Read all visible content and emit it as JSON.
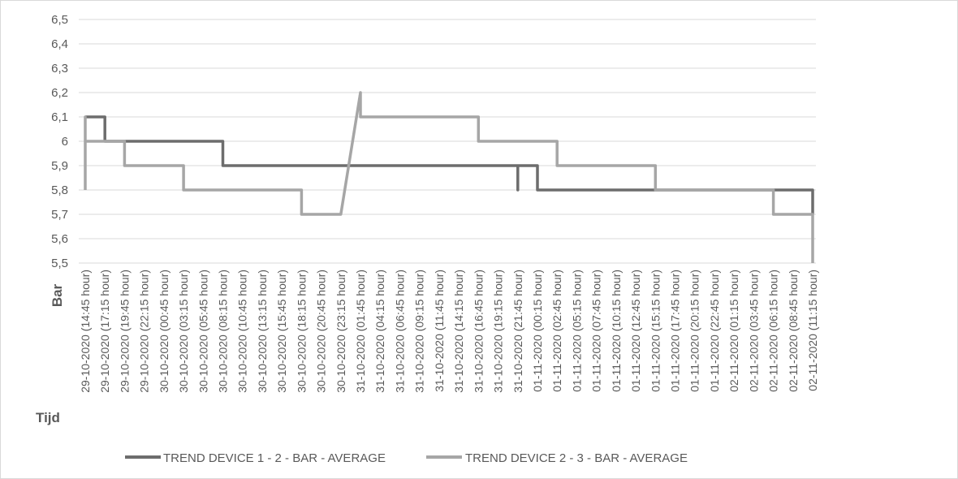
{
  "chart_data": {
    "type": "line",
    "ylabel": "Bar",
    "xlabel": "Tijd",
    "ylim": [
      5.5,
      6.5
    ],
    "yticks": [
      "6,5",
      "6,4",
      "6,3",
      "6,2",
      "6,1",
      "6",
      "5,9",
      "5,8",
      "5,7",
      "5,6",
      "5,5"
    ],
    "grid": true,
    "legend_position": "bottom",
    "x_tick_labels": [
      "29-10-2020 (14:45 hour)",
      "29-10-2020 (17:15 hour)",
      "29-10-2020 (19:45 hour)",
      "29-10-2020 (22:15 hour)",
      "30-10-2020 (00:45 hour)",
      "30-10-2020 (03:15 hour)",
      "30-10-2020 (05:45 hour)",
      "30-10-2020 (08:15 hour)",
      "30-10-2020 (10:45 hour)",
      "30-10-2020 (13:15 hour)",
      "30-10-2020 (15:45 hour)",
      "30-10-2020 (18:15 hour)",
      "30-10-2020 (20:45 hour)",
      "30-10-2020 (23:15 hour)",
      "31-10-2020 (01:45 hour)",
      "31-10-2020 (04:15 hour)",
      "31-10-2020 (06:45 hour)",
      "31-10-2020 (09:15 hour)",
      "31-10-2020 (11:45 hour)",
      "31-10-2020 (14:15 hour)",
      "31-10-2020 (16:45 hour)",
      "31-10-2020 (19:15 hour)",
      "31-10-2020 (21:45 hour)",
      "01-11-2020 (00:15 hour)",
      "01-11-2020 (02:45 hour)",
      "01-11-2020 (05:15 hour)",
      "01-11-2020 (07:45 hour)",
      "01-11-2020 (10:15 hour)",
      "01-11-2020 (12:45 hour)",
      "01-11-2020 (15:15 hour)",
      "01-11-2020 (17:45 hour)",
      "01-11-2020 (20:15 hour)",
      "01-11-2020 (22:45 hour)",
      "02-11-2020 (01:15 hour)",
      "02-11-2020 (03:45 hour)",
      "02-11-2020 (06:15 hour)",
      "02-11-2020 (08:45 hour)",
      "02-11-2020 (11:15 hour)"
    ],
    "series": [
      {
        "name": "TREND DEVICE 1 - 2 - BAR - AVERAGE",
        "color": "#6d6d6d",
        "points": [
          [
            "29-10-2020 (14:45 hour)",
            6.1
          ],
          [
            "29-10-2020 (17:15 hour)",
            6.1
          ],
          [
            "29-10-2020 (17:15 hour)",
            6.0
          ],
          [
            "30-10-2020 (08:15 hour)",
            6.0
          ],
          [
            "30-10-2020 (08:15 hour)",
            5.9
          ],
          [
            "31-10-2020 (21:45 hour)",
            5.9
          ],
          [
            "31-10-2020 (21:45 hour)",
            5.8
          ],
          [
            "31-10-2020 (21:45 hour)",
            5.9
          ],
          [
            "01-11-2020 (00:15 hour)",
            5.9
          ],
          [
            "01-11-2020 (00:15 hour)",
            5.8
          ],
          [
            "02-11-2020 (11:15 hour)",
            5.8
          ],
          [
            "02-11-2020 (11:15 hour)",
            5.7
          ]
        ]
      },
      {
        "name": "TREND DEVICE 2 - 3 - BAR - AVERAGE",
        "color": "#a6a6a6",
        "points": [
          [
            "29-10-2020 (14:45 hour)",
            5.8
          ],
          [
            "29-10-2020 (14:45 hour)",
            6.1
          ],
          [
            "29-10-2020 (14:45 hour)",
            6.0
          ],
          [
            "29-10-2020 (19:45 hour)",
            6.0
          ],
          [
            "29-10-2020 (19:45 hour)",
            5.9
          ],
          [
            "30-10-2020 (03:15 hour)",
            5.9
          ],
          [
            "30-10-2020 (03:15 hour)",
            5.8
          ],
          [
            "30-10-2020 (18:15 hour)",
            5.8
          ],
          [
            "30-10-2020 (18:15 hour)",
            5.7
          ],
          [
            "30-10-2020 (23:15 hour)",
            5.7
          ],
          [
            "31-10-2020 (01:45 hour)",
            6.2
          ],
          [
            "31-10-2020 (01:45 hour)",
            6.1
          ],
          [
            "31-10-2020 (16:45 hour)",
            6.1
          ],
          [
            "31-10-2020 (16:45 hour)",
            6.0
          ],
          [
            "01-11-2020 (02:45 hour)",
            6.0
          ],
          [
            "01-11-2020 (02:45 hour)",
            5.9
          ],
          [
            "01-11-2020 (15:15 hour)",
            5.9
          ],
          [
            "01-11-2020 (15:15 hour)",
            5.8
          ],
          [
            "02-11-2020 (06:15 hour)",
            5.8
          ],
          [
            "02-11-2020 (06:15 hour)",
            5.7
          ],
          [
            "02-11-2020 (11:15 hour)",
            5.7
          ],
          [
            "02-11-2020 (11:15 hour)",
            5.5
          ]
        ]
      }
    ]
  }
}
